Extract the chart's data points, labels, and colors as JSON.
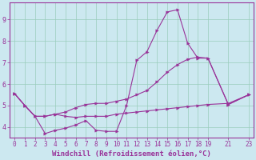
{
  "xlabel": "Windchill (Refroidissement éolien,°C)",
  "bg_color": "#cce8f0",
  "line_color": "#993399",
  "grid_color": "#99ccbb",
  "xlim": [
    -0.5,
    23.5
  ],
  "ylim": [
    3.5,
    9.8
  ],
  "xticks": [
    0,
    1,
    2,
    3,
    4,
    5,
    6,
    7,
    8,
    9,
    10,
    11,
    12,
    13,
    14,
    15,
    16,
    17,
    18,
    19,
    21,
    23
  ],
  "yticks": [
    4,
    5,
    6,
    7,
    8,
    9
  ],
  "line1_x": [
    0,
    1,
    2,
    3,
    4,
    5,
    6,
    7,
    8,
    9,
    10,
    11,
    12,
    13,
    14,
    15,
    16,
    17,
    18,
    19,
    21,
    23
  ],
  "line1_y": [
    5.55,
    5.0,
    4.5,
    3.7,
    3.85,
    3.95,
    4.1,
    4.3,
    3.85,
    3.8,
    3.8,
    5.0,
    7.1,
    7.5,
    8.5,
    9.35,
    9.45,
    7.9,
    7.2,
    7.2,
    5.05,
    5.5
  ],
  "line2_x": [
    0,
    1,
    2,
    3,
    4,
    5,
    6,
    7,
    8,
    9,
    10,
    11,
    12,
    13,
    14,
    15,
    16,
    17,
    18,
    19,
    21,
    23
  ],
  "line2_y": [
    5.55,
    5.0,
    4.5,
    4.5,
    4.6,
    4.7,
    4.9,
    5.05,
    5.1,
    5.1,
    5.2,
    5.3,
    5.5,
    5.7,
    6.1,
    6.55,
    6.9,
    7.15,
    7.25,
    7.2,
    5.05,
    5.5
  ],
  "line3_x": [
    0,
    1,
    2,
    3,
    4,
    5,
    6,
    7,
    8,
    9,
    10,
    11,
    12,
    13,
    14,
    15,
    16,
    17,
    18,
    19,
    21,
    23
  ],
  "line3_y": [
    5.55,
    5.0,
    4.5,
    4.5,
    4.6,
    4.5,
    4.45,
    4.5,
    4.5,
    4.5,
    4.6,
    4.65,
    4.7,
    4.75,
    4.8,
    4.85,
    4.9,
    4.95,
    5.0,
    5.05,
    5.1,
    5.5
  ],
  "marker_size": 2.5,
  "line_width": 0.8,
  "tick_fontsize": 5.5,
  "label_fontsize": 6.5
}
